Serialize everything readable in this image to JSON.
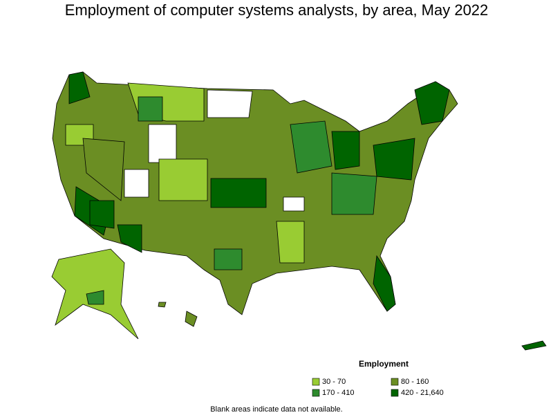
{
  "title": "Employment of computer systems analysts, by area, May 2022",
  "legend": {
    "title": "Employment",
    "items": [
      {
        "label": "30 - 70",
        "color": "#99cc33"
      },
      {
        "label": "80 - 160",
        "color": "#6b8e23"
      },
      {
        "label": "170 - 410",
        "color": "#2e8b2e"
      },
      {
        "label": "420 - 21,640",
        "color": "#006400"
      }
    ]
  },
  "footnote": "Blank areas indicate data not available."
}
